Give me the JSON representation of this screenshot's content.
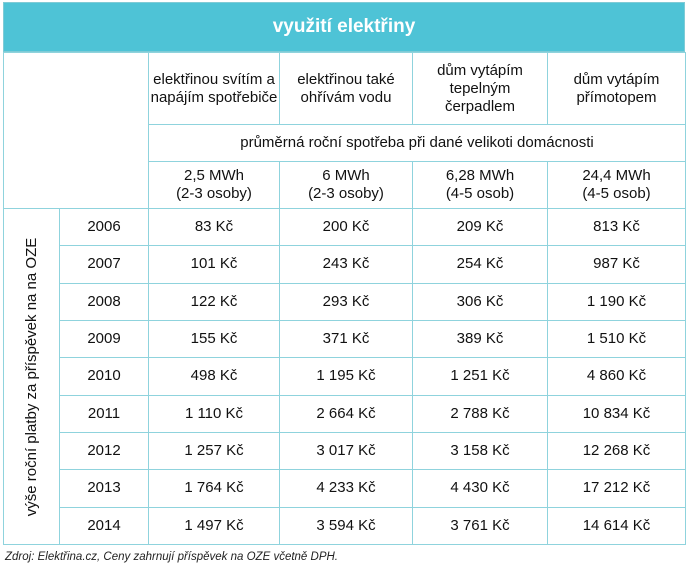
{
  "title": "využití elektřiny",
  "columns": [
    "elektřinou svítím a napájím spotřebiče",
    "elektřinou také ohřívám vodu",
    "dům vytápím tepelným čerpadlem",
    "dům vytápím přímotopem"
  ],
  "subheader": "průměrná roční spotřeba při dané velikoti domácnosti",
  "sizes": [
    {
      "mwh": "2,5 MWh",
      "people": "(2-3 osoby)"
    },
    {
      "mwh": "6 MWh",
      "people": "(2-3 osoby)"
    },
    {
      "mwh": "6,28 MWh",
      "people": "(4-5 osob)"
    },
    {
      "mwh": "24,4 MWh",
      "people": "(4-5 osob)"
    }
  ],
  "row_label": "výše roční platby za příspěvek na na OZE",
  "rows": [
    {
      "year": "2006",
      "values": [
        "83 Kč",
        "200 Kč",
        "209 Kč",
        "813 Kč"
      ]
    },
    {
      "year": "2007",
      "values": [
        "101 Kč",
        "243 Kč",
        "254 Kč",
        "987 Kč"
      ]
    },
    {
      "year": "2008",
      "values": [
        "122 Kč",
        "293 Kč",
        "306 Kč",
        "1 190 Kč"
      ]
    },
    {
      "year": "2009",
      "values": [
        "155 Kč",
        "371 Kč",
        "389 Kč",
        "1 510 Kč"
      ]
    },
    {
      "year": "2010",
      "values": [
        "498 Kč",
        "1 195 Kč",
        "1 251 Kč",
        "4 860 Kč"
      ]
    },
    {
      "year": "2011",
      "values": [
        "1 110 Kč",
        "2 664 Kč",
        "2 788 Kč",
        "10 834 Kč"
      ]
    },
    {
      "year": "2012",
      "values": [
        "1 257 Kč",
        "3 017 Kč",
        "3 158 Kč",
        "12 268 Kč"
      ]
    },
    {
      "year": "2013",
      "values": [
        "1 764 Kč",
        "4 233 Kč",
        "4 430 Kč",
        "17 212 Kč"
      ]
    },
    {
      "year": "2014",
      "values": [
        "1 497 Kč",
        "3 594 Kč",
        "3 761 Kč",
        "14 614 Kč"
      ]
    }
  ],
  "source": "Zdroj: Elektřina.cz, Ceny zahrnují příspěvek na OZE včetně DPH.",
  "colors": {
    "accent": "#4ec3d6",
    "border": "#8fd3dd"
  }
}
